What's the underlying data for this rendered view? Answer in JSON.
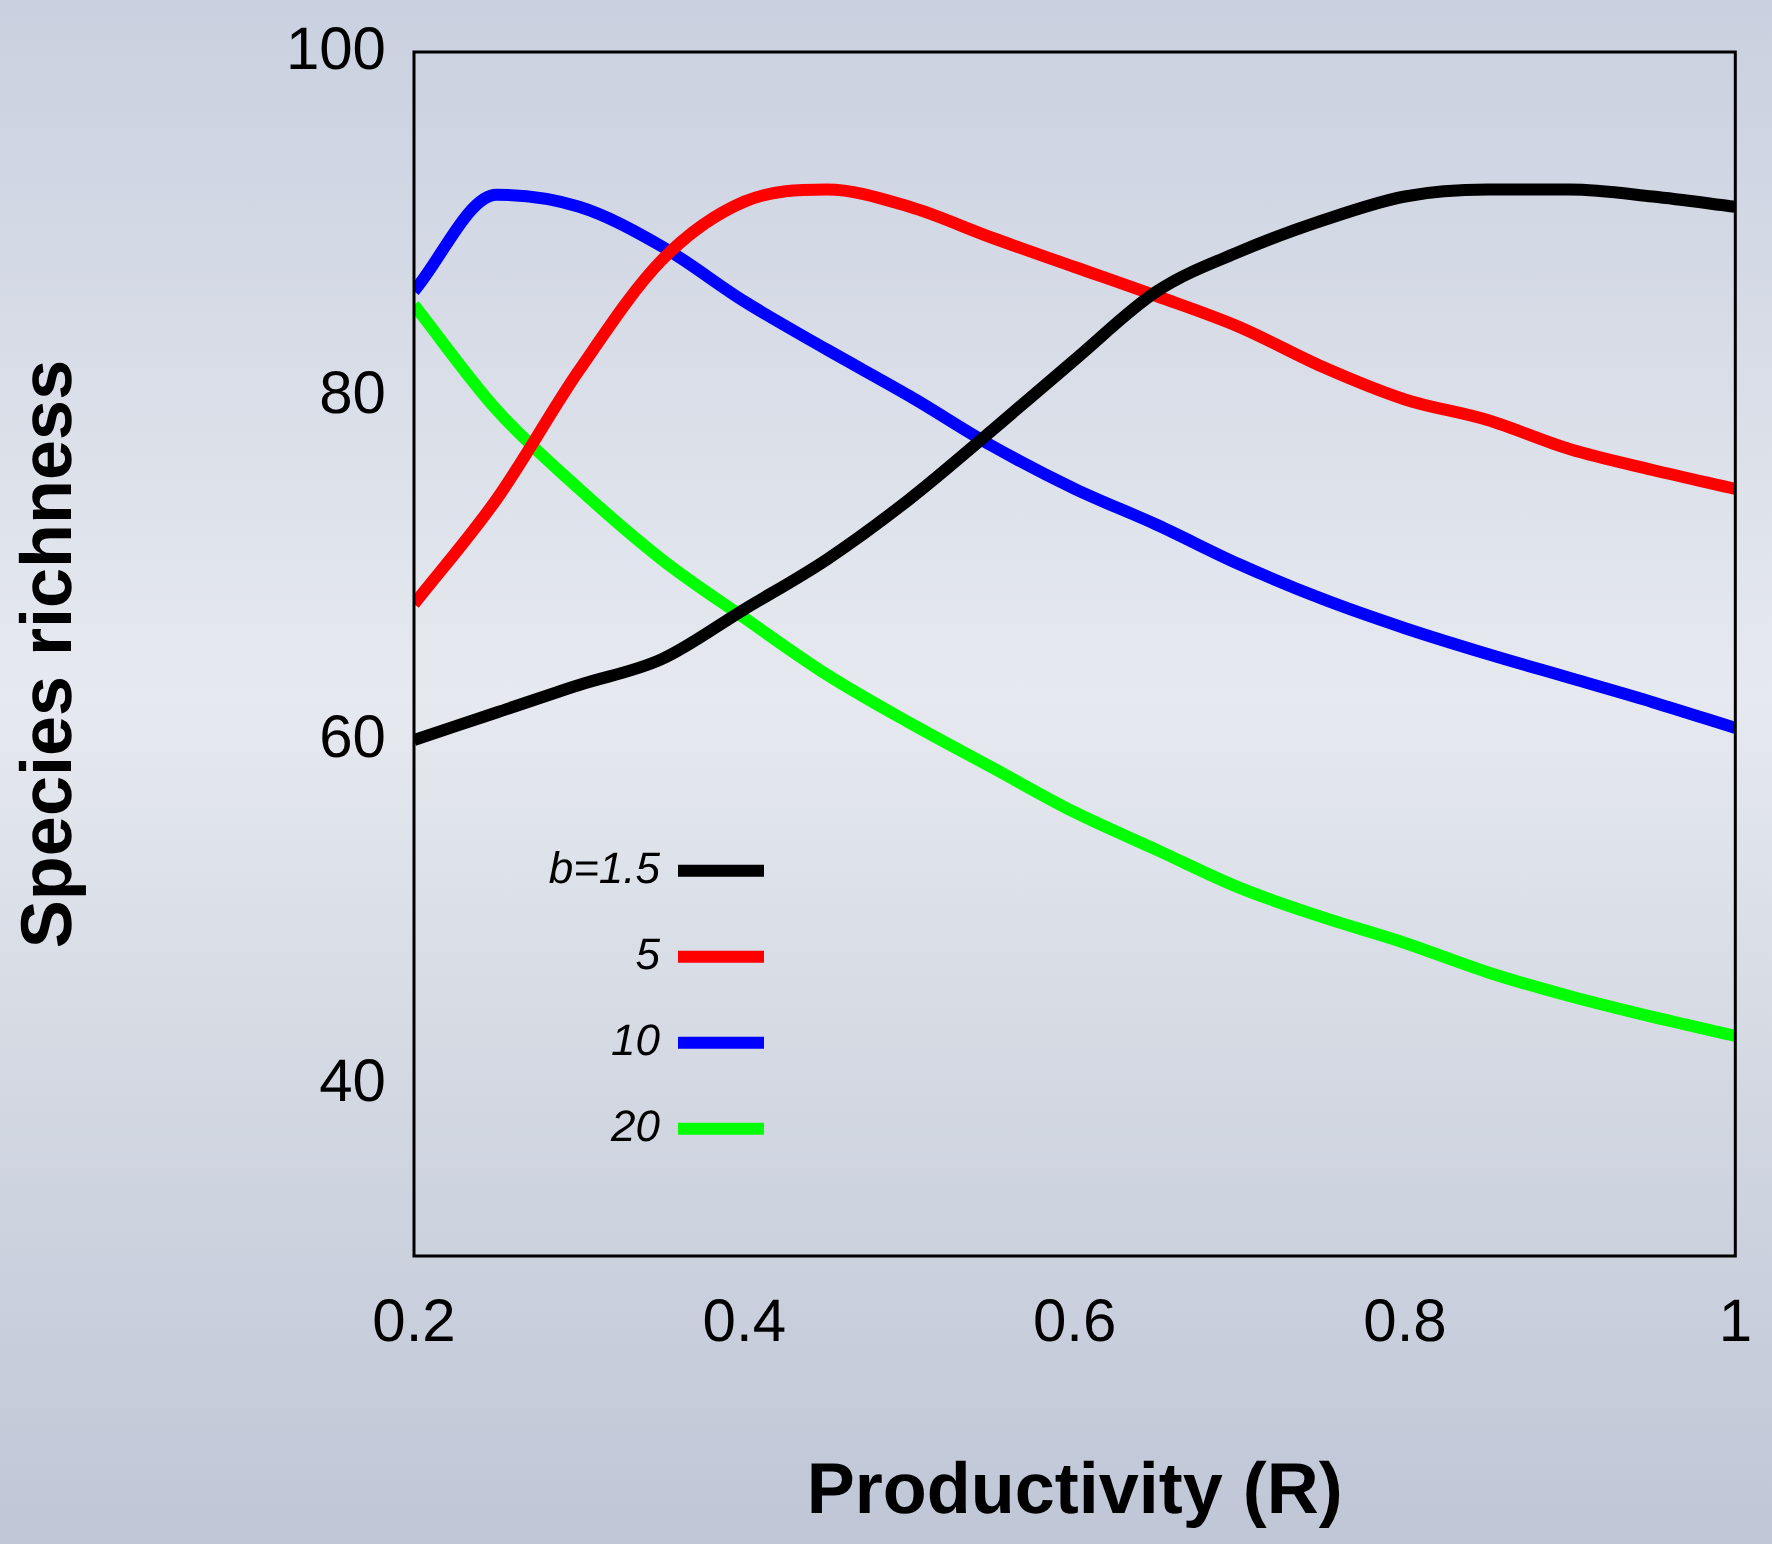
{
  "chart_data": {
    "type": "line",
    "xlabel": "Productivity (R)",
    "ylabel": "Species richness",
    "xlim": [
      0.2,
      1
    ],
    "xticks": [
      0.2,
      0.4,
      0.6,
      0.8,
      1
    ],
    "ylim": [
      30,
      100
    ],
    "yticks": [
      40,
      60,
      80,
      100
    ],
    "grid": false,
    "legend": "left",
    "marker": "none",
    "line_style": "solid",
    "x": [
      0.2,
      0.25,
      0.3,
      0.35,
      0.4,
      0.45,
      0.5,
      0.55,
      0.6,
      0.65,
      0.7,
      0.75,
      0.8,
      0.85,
      0.9,
      0.95,
      1
    ],
    "series": [
      {
        "name": "b=1.5",
        "color": "#000000",
        "values": [
          60,
          61.6,
          63.2,
          64.7,
          67.6,
          70.5,
          74,
          78,
          82.1,
          86.1,
          88.4,
          90.2,
          91.6,
          92,
          92,
          91.6,
          91
        ]
      },
      {
        "name": "5",
        "color": "#ff0000",
        "values": [
          67.9,
          74,
          81.5,
          87.9,
          91.3,
          92,
          91,
          89.2,
          87.5,
          85.8,
          84,
          81.7,
          79.8,
          78.6,
          76.9,
          75.7,
          74.6
        ]
      },
      {
        "name": "10",
        "color": "#0000ff",
        "values": [
          86.1,
          91.7,
          91,
          88.7,
          85.5,
          82.7,
          80,
          77.1,
          74.6,
          72.5,
          70.2,
          68.2,
          66.5,
          65,
          63.6,
          62.2,
          60.7
        ]
      },
      {
        "name": "20",
        "color": "#00ff00",
        "values": [
          85.3,
          79.2,
          74.6,
          70.5,
          67.1,
          63.8,
          61,
          58.4,
          55.8,
          53.6,
          51.4,
          49.7,
          48.2,
          46.5,
          45.1,
          43.9,
          42.8
        ]
      }
    ]
  }
}
